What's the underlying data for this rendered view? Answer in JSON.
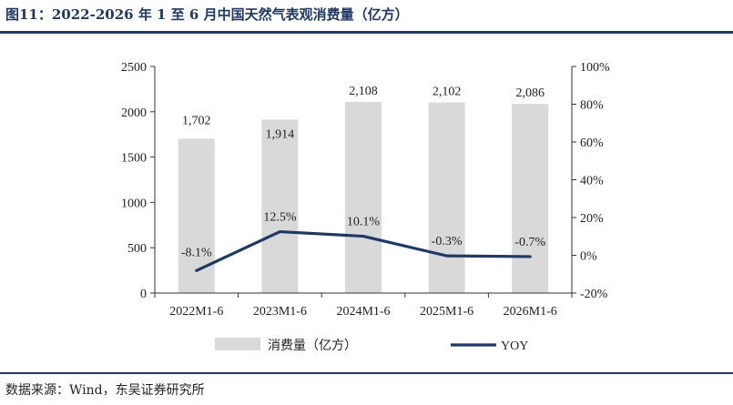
{
  "header": {
    "title": "图11：2022-2026 年 1 至 6 月中国天然气表观消费量（亿方）"
  },
  "footer": {
    "source": "数据来源：Wind，东吴证券研究所"
  },
  "colors": {
    "bar": "#d9d9d9",
    "line": "#1f3864",
    "rule": "#1f3864"
  },
  "chart_data": {
    "type": "bar",
    "categories": [
      "2022M1-6",
      "2023M1-6",
      "2024M1-6",
      "2025M1-6",
      "2026M1-6"
    ],
    "series": [
      {
        "name": "消费量（亿方）",
        "type": "bar",
        "axis": "left",
        "values": [
          1702,
          1914,
          2108,
          2102,
          2086
        ],
        "labels": [
          "1,702",
          "1,914",
          "2,108",
          "2,102",
          "2,086"
        ]
      },
      {
        "name": "YOY",
        "type": "line",
        "axis": "right",
        "values": [
          -8.1,
          12.5,
          10.1,
          -0.3,
          -0.7
        ],
        "labels": [
          "-8.1%",
          "12.5%",
          "10.1%",
          "-0.3%",
          "-0.7%"
        ]
      }
    ],
    "ylim_left": [
      0,
      2500
    ],
    "yticks_left": [
      0,
      500,
      1000,
      1500,
      2000,
      2500
    ],
    "ylim_right": [
      -20,
      100
    ],
    "yticks_right": [
      "-20%",
      "0%",
      "20%",
      "40%",
      "60%",
      "80%",
      "100%"
    ],
    "legend_position": "bottom",
    "grid": false
  }
}
